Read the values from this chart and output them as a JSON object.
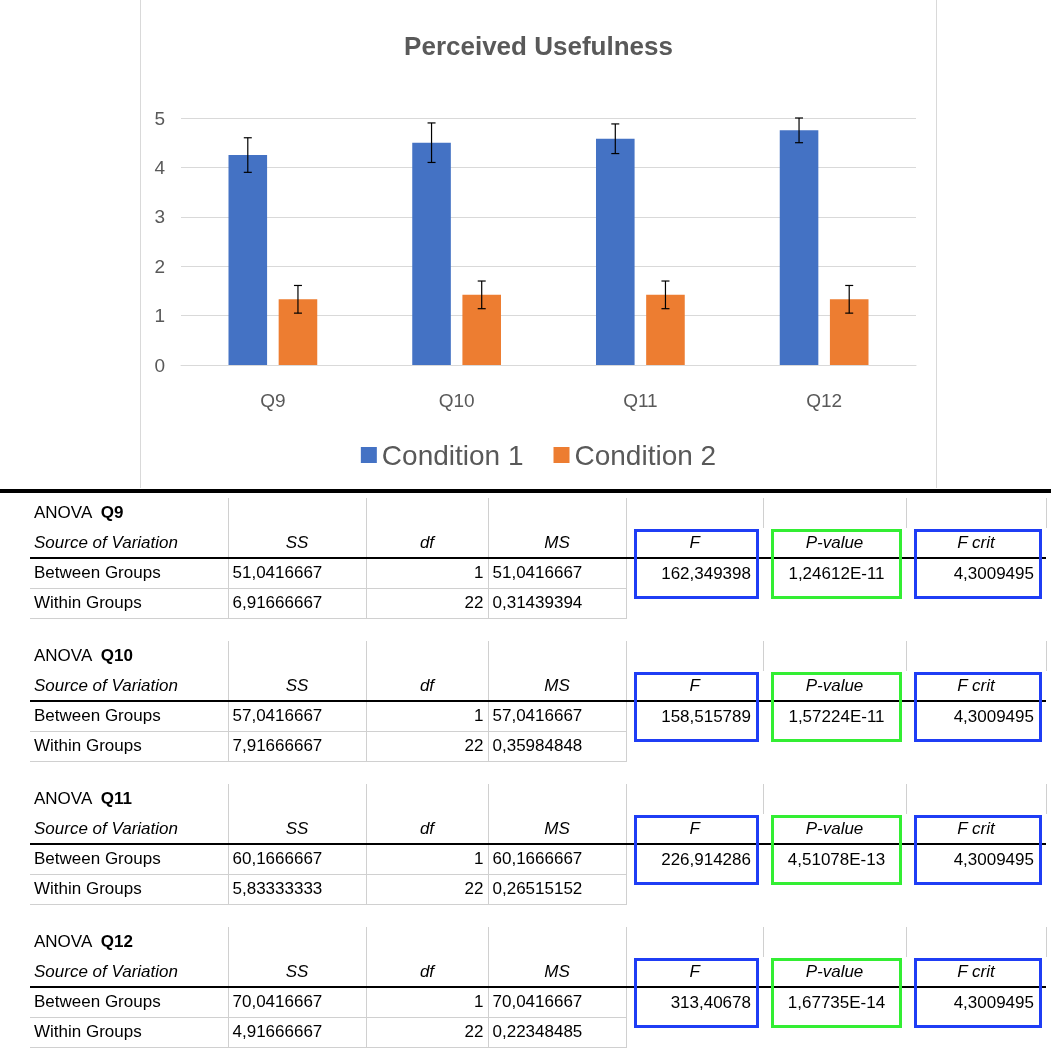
{
  "chart_data": [
    {
      "type": "bar",
      "title": "Perceived Usefulness",
      "categories": [
        "Q9",
        "Q10",
        "Q11",
        "Q12"
      ],
      "series": [
        {
          "name": "Condition 1",
          "color": "#4472c4",
          "values": [
            4.25,
            4.5,
            4.58,
            4.75
          ],
          "errors": [
            0.35,
            0.4,
            0.3,
            0.25
          ]
        },
        {
          "name": "Condition 2",
          "color": "#ed7d31",
          "values": [
            1.33,
            1.42,
            1.42,
            1.33
          ],
          "errors": [
            0.28,
            0.28,
            0.28,
            0.28
          ]
        }
      ],
      "ylim": [
        0,
        5
      ],
      "yticks": [
        0,
        1,
        2,
        3,
        4,
        5
      ],
      "grid": "y",
      "legend": "bottom"
    },
    {
      "type": "other",
      "title": "ANOVA",
      "subtitle": "Q9",
      "annotations": [
        "Source of Variation",
        "SS",
        "df",
        "MS",
        "F",
        "P-value",
        "F crit",
        "Between Groups",
        "51,0416667",
        "1",
        "51,0416667",
        "162,349398",
        "1,24612E-11",
        "4,3009495",
        "Within Groups",
        "6,91666667",
        "22",
        "0,31439394"
      ]
    },
    {
      "type": "other",
      "title": "ANOVA",
      "subtitle": "Q10",
      "annotations": [
        "Source of Variation",
        "SS",
        "df",
        "MS",
        "F",
        "P-value",
        "F crit",
        "Between Groups",
        "57,0416667",
        "1",
        "57,0416667",
        "158,515789",
        "1,57224E-11",
        "4,3009495",
        "Within Groups",
        "7,91666667",
        "22",
        "0,35984848"
      ]
    },
    {
      "type": "other",
      "title": "ANOVA",
      "subtitle": "Q11",
      "annotations": [
        "Source of Variation",
        "SS",
        "df",
        "MS",
        "F",
        "P-value",
        "F crit",
        "Between Groups",
        "60,1666667",
        "1",
        "60,1666667",
        "226,914286",
        "4,51078E-13",
        "4,3009495",
        "Within Groups",
        "5,83333333",
        "22",
        "0,26515152"
      ]
    },
    {
      "type": "other",
      "title": "ANOVA",
      "subtitle": "Q12",
      "annotations": [
        "Source of Variation",
        "SS",
        "df",
        "MS",
        "F",
        "P-value",
        "F crit",
        "Between Groups",
        "70,0416667",
        "1",
        "70,0416667",
        "313,40678",
        "1,67735E-14",
        "4,3009495",
        "Within Groups",
        "4,91666667",
        "22",
        "0,22348485"
      ]
    }
  ]
}
